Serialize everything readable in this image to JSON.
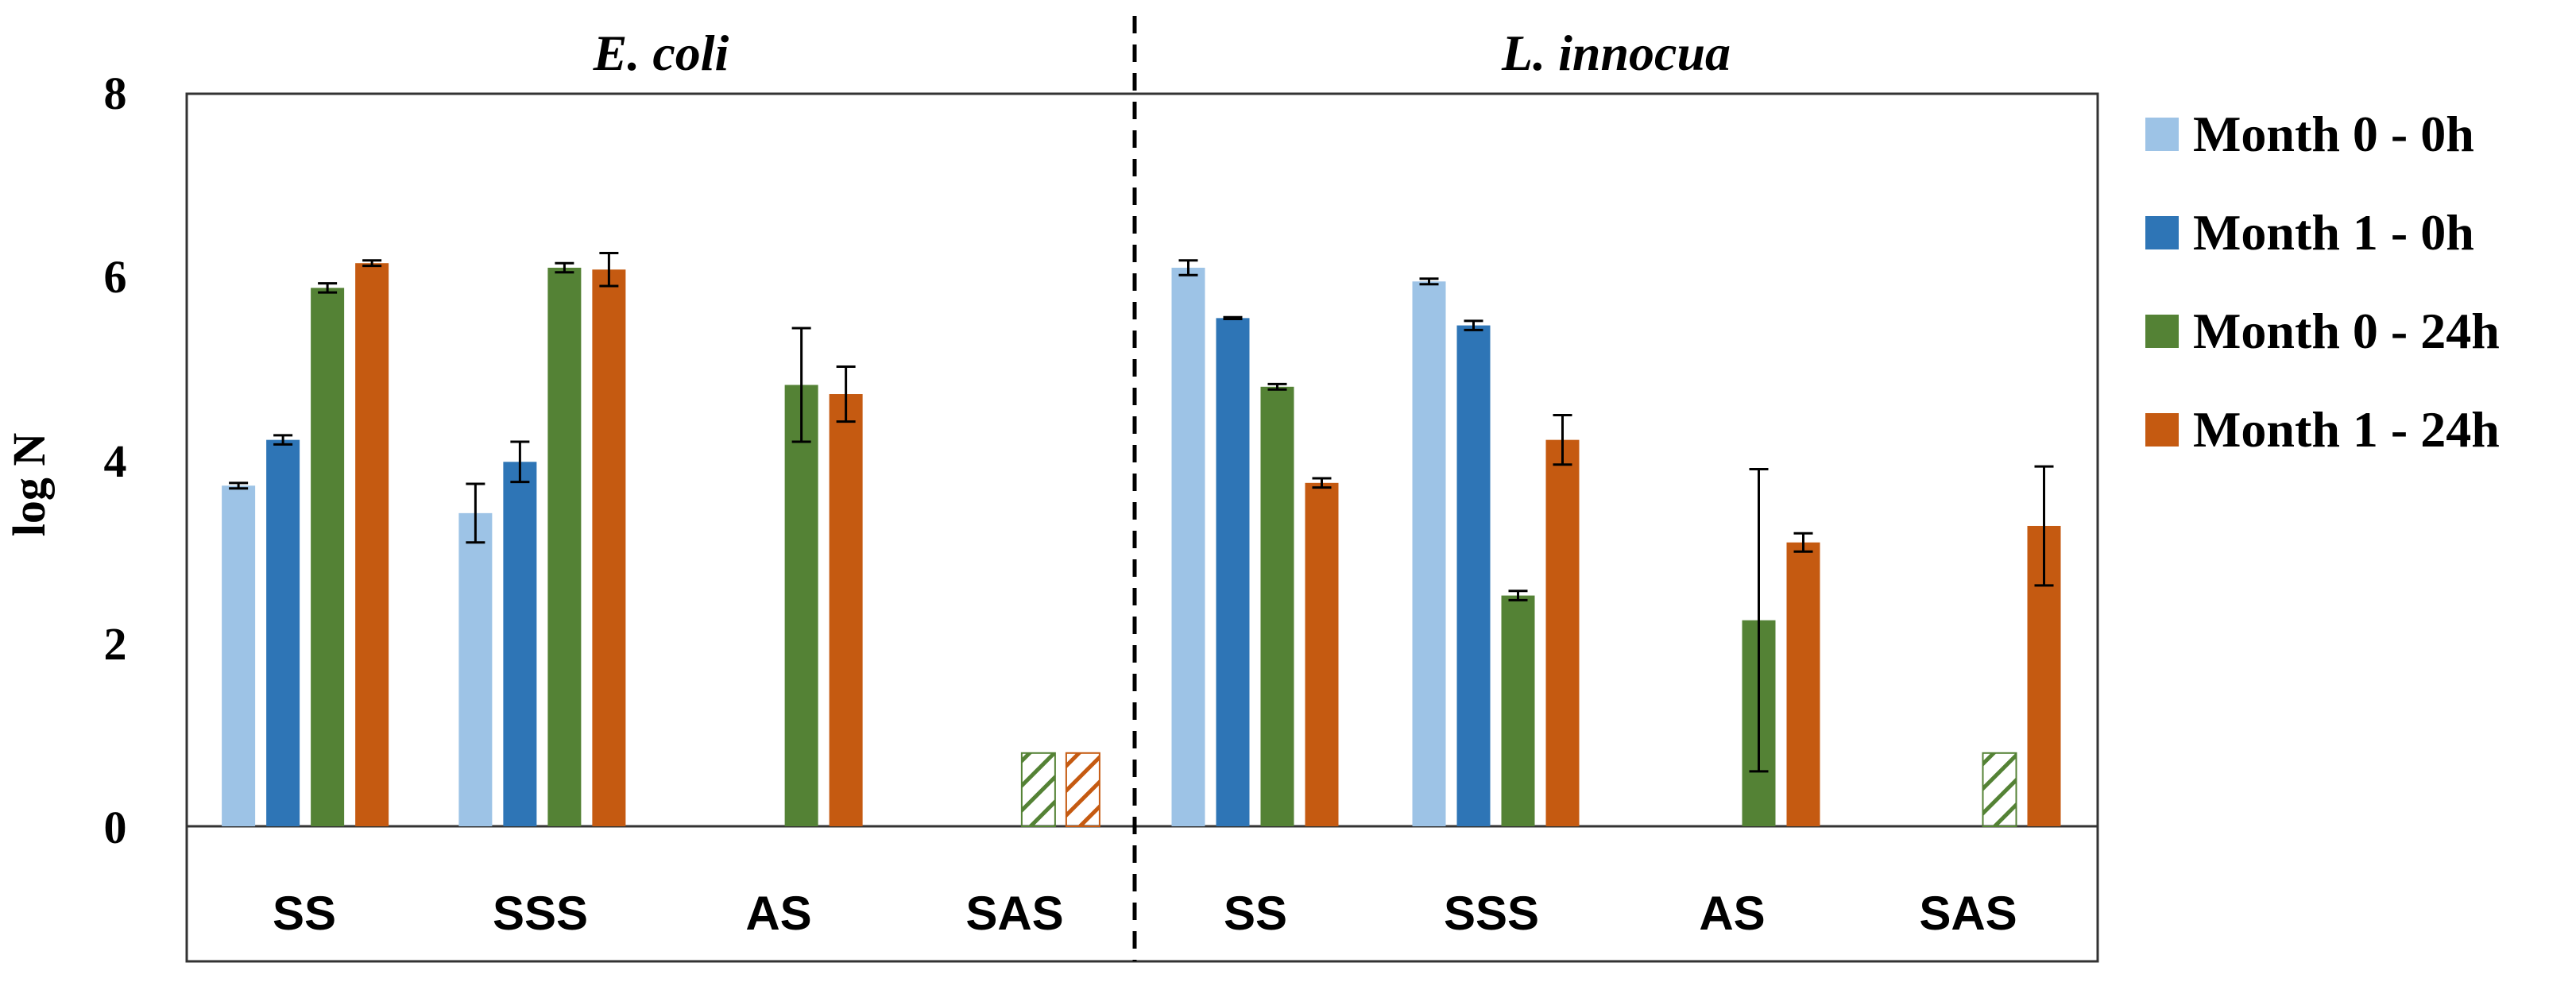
{
  "chart_data": {
    "type": "bar",
    "ylabel": "log N",
    "ylim": [
      0,
      8
    ],
    "yticks": [
      "0",
      "2",
      "4",
      "6",
      "8"
    ],
    "legend_position": "right",
    "series": [
      {
        "name": "Month 0 - 0h",
        "color": "#9DC3E6"
      },
      {
        "name": "Month 1 - 0h",
        "color": "#2E75B6"
      },
      {
        "name": "Month 0 - 24h",
        "color": "#548235"
      },
      {
        "name": "Month 1 - 24h",
        "color": "#C55A11"
      }
    ],
    "panels": [
      {
        "title": "E. coli",
        "categories": [
          "SS",
          "SSS",
          "AS",
          "SAS"
        ],
        "values": [
          [
            3.72,
            3.42,
            null,
            null
          ],
          [
            4.22,
            3.98,
            null,
            null
          ],
          [
            5.88,
            6.1,
            4.82,
            0.8
          ],
          [
            6.15,
            6.08,
            4.72,
            0.8
          ]
        ],
        "errors": [
          [
            0.03,
            0.32,
            null,
            null
          ],
          [
            0.05,
            0.22,
            null,
            null
          ],
          [
            0.05,
            0.05,
            0.62,
            null
          ],
          [
            0.03,
            0.18,
            0.3,
            null
          ]
        ],
        "hatched": [
          [
            false,
            false,
            false,
            false
          ],
          [
            false,
            false,
            false,
            false
          ],
          [
            false,
            false,
            false,
            true
          ],
          [
            false,
            false,
            false,
            true
          ]
        ]
      },
      {
        "title": "L. innocua",
        "categories": [
          "SS",
          "SSS",
          "AS",
          "SAS"
        ],
        "values": [
          [
            6.1,
            5.95,
            null,
            null
          ],
          [
            5.55,
            5.47,
            null,
            null
          ],
          [
            4.8,
            2.52,
            2.25,
            0.8
          ],
          [
            3.75,
            4.22,
            3.1,
            3.28
          ]
        ],
        "errors": [
          [
            0.08,
            0.03,
            null,
            null
          ],
          [
            0.01,
            0.05,
            null,
            null
          ],
          [
            0.03,
            0.05,
            1.65,
            null
          ],
          [
            0.05,
            0.27,
            0.1,
            0.65
          ]
        ],
        "hatched": [
          [
            false,
            false,
            false,
            false
          ],
          [
            false,
            false,
            false,
            false
          ],
          [
            false,
            false,
            false,
            true
          ],
          [
            false,
            false,
            false,
            false
          ]
        ]
      }
    ]
  }
}
